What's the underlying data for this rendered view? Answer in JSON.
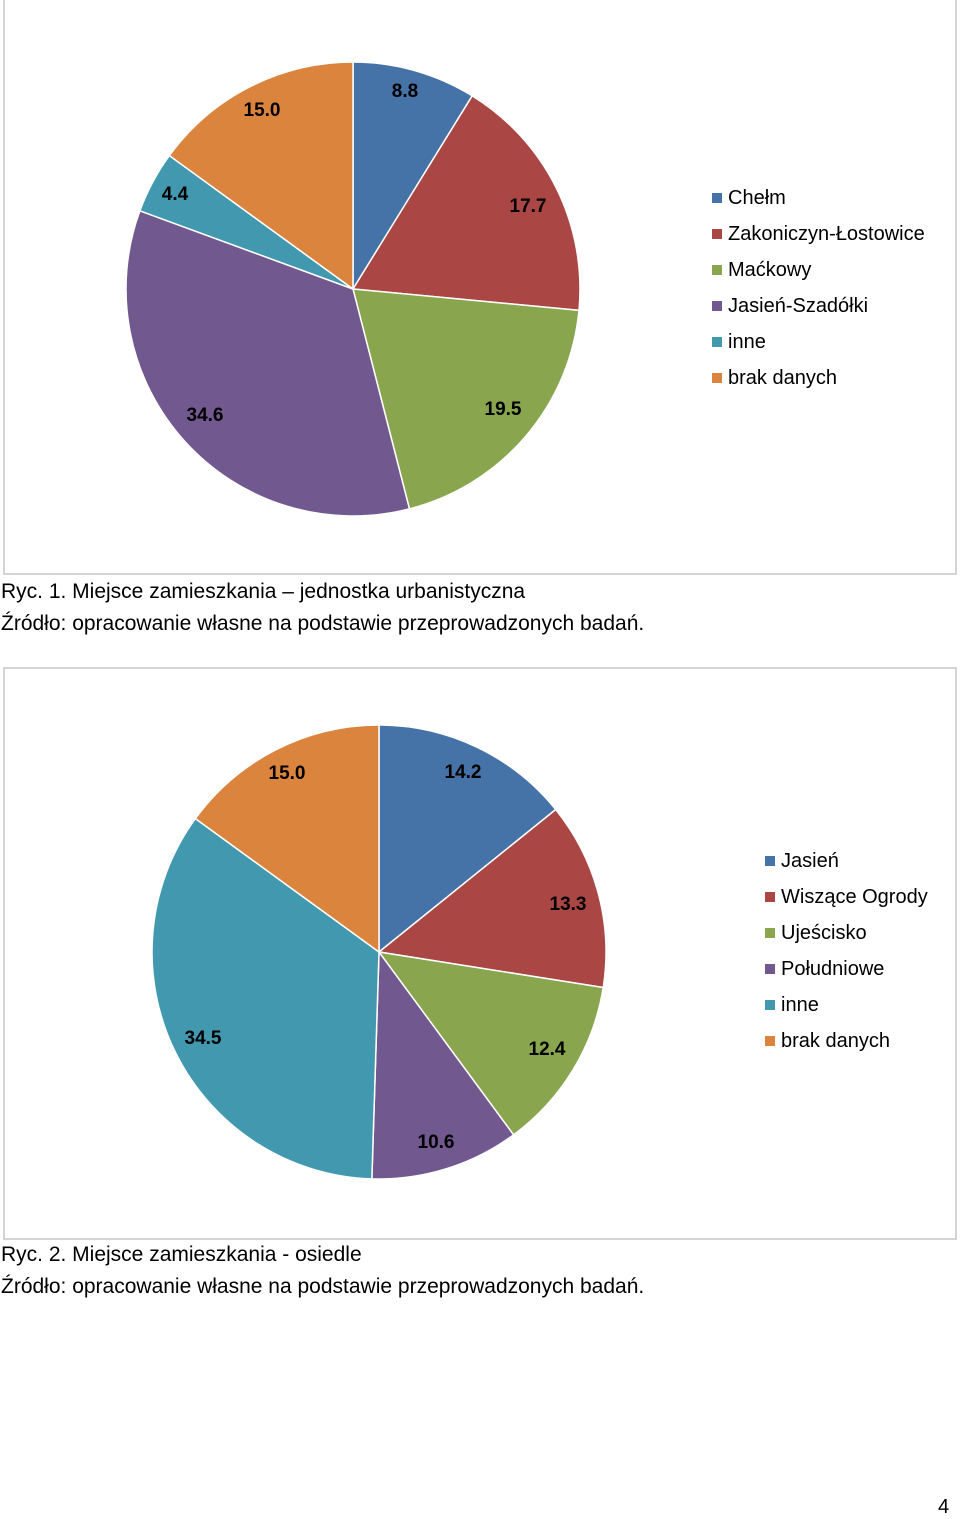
{
  "chart_data": [
    {
      "type": "pie",
      "categories": [
        "Chełm",
        "Zakoniczyn-Łostowice",
        "Maćkowy",
        "Jasień-Szadółki",
        "inne",
        "brak danych"
      ],
      "values": [
        8.8,
        17.7,
        19.5,
        34.6,
        4.4,
        15.0
      ],
      "data_labels": [
        "8.8",
        "17.7",
        "19.5",
        "34.6",
        "4.4",
        "15.0"
      ],
      "colors": [
        "#4572A7",
        "#AA4643",
        "#89A54E",
        "#71588F",
        "#4198AF",
        "#DB843D"
      ],
      "legend_position": "right"
    },
    {
      "type": "pie",
      "categories": [
        "Jasień",
        "Wiszące Ogrody",
        "Ujeścisko",
        "Południowe",
        "inne",
        "brak danych"
      ],
      "values": [
        14.2,
        13.3,
        12.4,
        10.6,
        34.5,
        15.0
      ],
      "data_labels": [
        "14.2",
        "13.3",
        "12.4",
        "10.6",
        "34.5",
        "15.0"
      ],
      "colors": [
        "#4572A7",
        "#AA4643",
        "#89A54E",
        "#71588F",
        "#4198AF",
        "#DB843D"
      ],
      "legend_position": "right"
    }
  ],
  "captions": [
    {
      "title": "Ryc. 1. Miejsce zamieszkania – jednostka urbanistyczna",
      "source": "Źródło: opracowanie własne na podstawie przeprowadzonych badań."
    },
    {
      "title": "Ryc. 2. Miejsce zamieszkania - osiedle",
      "source": "Źródło: opracowanie własne na podstawie przeprowadzonych badań."
    }
  ],
  "page_number": "4"
}
